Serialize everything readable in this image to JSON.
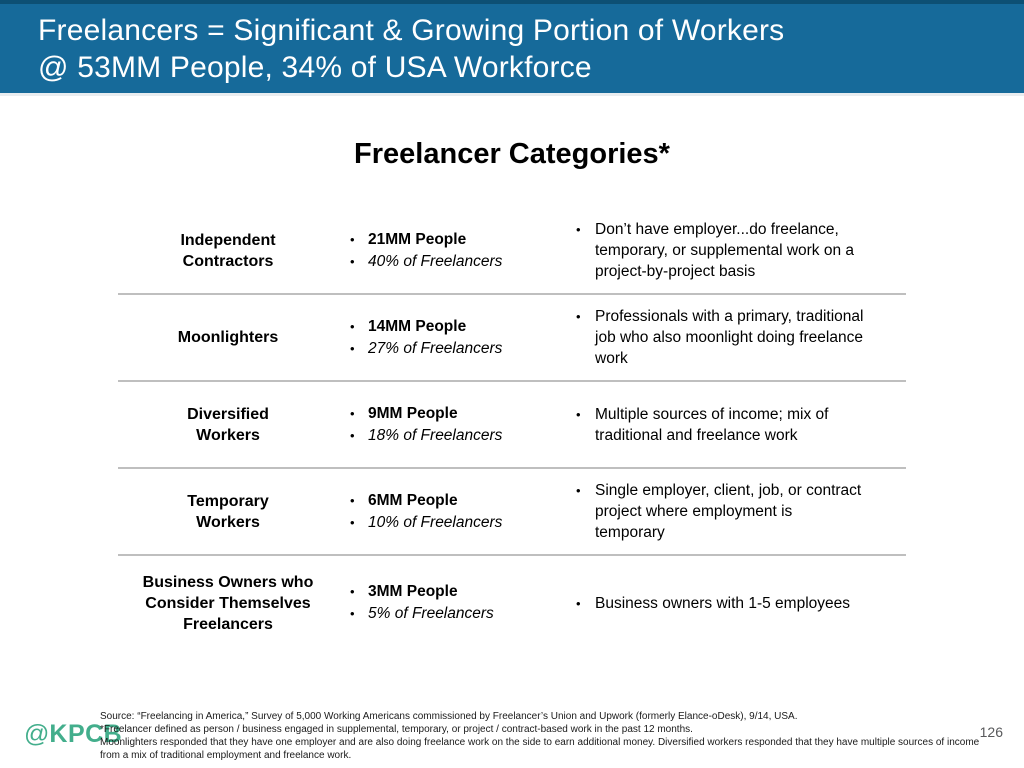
{
  "slide": {
    "header": {
      "title_line1": "Freelancers = Significant & Growing Portion of Workers",
      "title_line2": "@ 53MM People, 34% of USA Workforce"
    },
    "heading": "Freelancer Categories*",
    "table": {
      "rows": [
        {
          "category": "Independent\nContractors",
          "people": "21MM People",
          "share": "40% of Freelancers",
          "description": "Don’t have employer...do freelance,\ntemporary, or supplemental work on a\nproject-by-project basis"
        },
        {
          "category": "Moonlighters",
          "people": "14MM People",
          "share": "27% of Freelancers",
          "description": "Professionals with a primary, traditional\njob who also moonlight doing freelance\nwork"
        },
        {
          "category": "Diversified\nWorkers",
          "people": "9MM People",
          "share": "18% of Freelancers",
          "description": "Multiple sources of income; mix of\ntraditional and freelance work"
        },
        {
          "category": "Temporary\nWorkers",
          "people": "6MM People",
          "share": "10% of Freelancers",
          "description": "Single employer, client, job, or contract\nproject where employment is\ntemporary"
        },
        {
          "category": "Business Owners who\nConsider Themselves\nFreelancers",
          "people": "3MM People",
          "share": "5% of Freelancers",
          "description": "Business owners with 1-5 employees"
        }
      ]
    },
    "footer": {
      "logo_at": "@",
      "logo_text": "KPCB",
      "source_lines": [
        "Source: “Freelancing in America,” Survey of 5,000 Working Americans commissioned by Freelancer’s Union and Upwork (formerly Elance-oDesk), 9/14, USA.",
        "*Freelancer defined as person / business engaged in supplemental, temporary, or project / contract-based work in the past 12 months.",
        "Moonlighters responded that they have one employer and are also doing freelance work on the side to earn additional money. Diversified workers responded that they have multiple sources of income",
        "from a mix of traditional employment and freelance work."
      ],
      "page_number": "126"
    }
  },
  "glyphs": {
    "bullet": "•"
  },
  "colors": {
    "header_blue": "#166A9A",
    "header_top_strip": "#0D5074",
    "logo_green": "#43AE8C",
    "divider_gray": "#BFBFBF",
    "page_number_gray": "#58595B"
  }
}
